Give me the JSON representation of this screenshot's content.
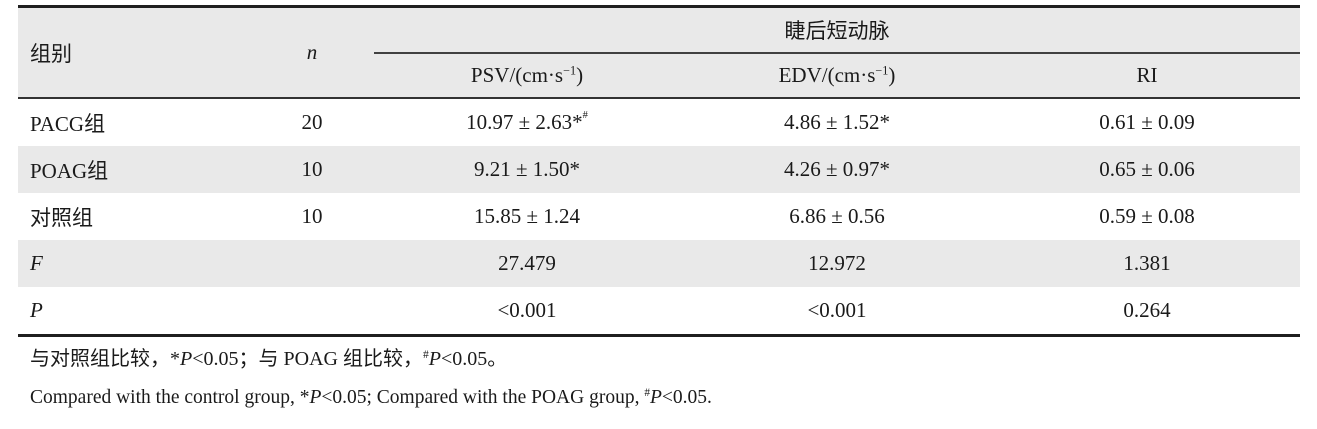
{
  "colors": {
    "row_alt": "#e9e9e9",
    "border_dark": "#1f1f1f",
    "border_mid": "#333333",
    "text": "#1a1a1a"
  },
  "table": {
    "header": {
      "group": "组别",
      "n": [
        {
          "t": "n",
          "c": "it"
        }
      ],
      "span": "睫后短动脉",
      "psv": [
        {
          "t": "PSV/(cm·s"
        },
        {
          "t": "−1",
          "c": "sup"
        },
        {
          "t": ")"
        }
      ],
      "edv": [
        {
          "t": "EDV/(cm·s"
        },
        {
          "t": "−1",
          "c": "sup"
        },
        {
          "t": ")"
        }
      ],
      "ri": "RI"
    },
    "rows": [
      {
        "label": "PACG组",
        "n": "20",
        "psv": [
          {
            "t": "10.97 ± 2.63"
          },
          {
            "t": "*"
          },
          {
            "t": "#",
            "c": "hi"
          }
        ],
        "edv": [
          {
            "t": "4.86 ± 1.52"
          },
          {
            "t": "*"
          }
        ],
        "ri": "0.61 ± 0.09"
      },
      {
        "label": "POAG组",
        "n": "10",
        "psv": [
          {
            "t": "9.21 ± 1.50"
          },
          {
            "t": "*"
          }
        ],
        "edv": [
          {
            "t": "4.26 ± 0.97"
          },
          {
            "t": "*"
          }
        ],
        "ri": "0.65 ± 0.06"
      },
      {
        "label": "对照组",
        "n": "10",
        "psv": "15.85 ± 1.24",
        "edv": "6.86 ± 0.56",
        "ri": "0.59 ± 0.08"
      },
      {
        "label": [
          {
            "t": "F",
            "c": "it"
          }
        ],
        "n": "",
        "psv": "27.479",
        "edv": "12.972",
        "ri": "1.381"
      },
      {
        "label": [
          {
            "t": "P",
            "c": "it"
          }
        ],
        "n": "",
        "psv": "<0.001",
        "edv": "<0.001",
        "ri": "0.264"
      }
    ],
    "footnote_cn": [
      {
        "t": "与对照组比较，"
      },
      {
        "t": "*"
      },
      {
        "t": "P",
        "c": "it"
      },
      {
        "t": "<0.05；与 POAG 组比较，"
      },
      {
        "t": "#",
        "c": "sup"
      },
      {
        "t": "P",
        "c": "it"
      },
      {
        "t": "<0.05。"
      }
    ],
    "footnote_en": [
      {
        "t": "Compared with the control group, "
      },
      {
        "t": "*"
      },
      {
        "t": "P",
        "c": "it"
      },
      {
        "t": "<0.05; Compared with the POAG group, "
      },
      {
        "t": "#",
        "c": "sup"
      },
      {
        "t": "P",
        "c": "it"
      },
      {
        "t": "<0.05."
      }
    ]
  }
}
